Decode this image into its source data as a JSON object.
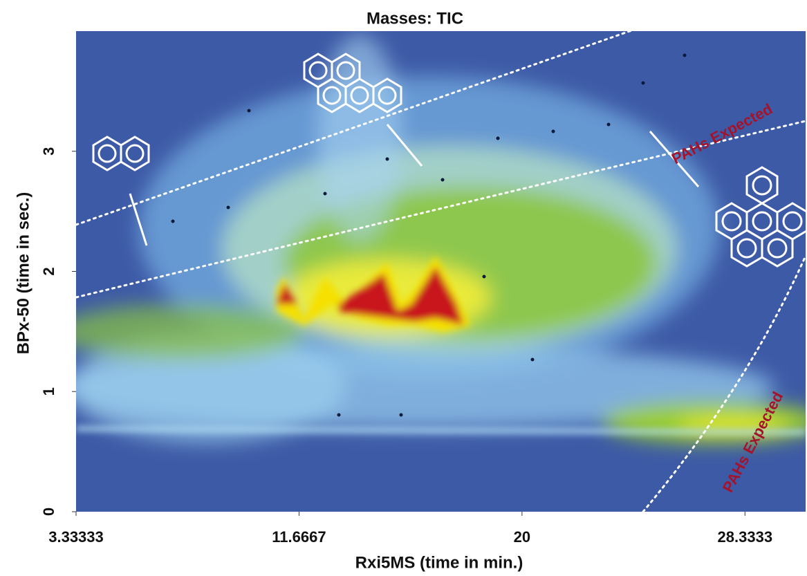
{
  "chart_data": {
    "type": "heatmap",
    "title": "Masses:  TIC",
    "x_label": "Rxi5MS (time in min.)",
    "y_label": "BPx-50 (time in sec.)",
    "xlim": [
      3.33333,
      30.6
    ],
    "xticks": [
      3.33333,
      11.6667,
      20,
      28.3333
    ],
    "ylim": [
      0,
      4
    ],
    "yticks": [
      0,
      1,
      2,
      3
    ],
    "annotations": [
      "PAHs Expected",
      "PAHs Expected"
    ]
  }
}
